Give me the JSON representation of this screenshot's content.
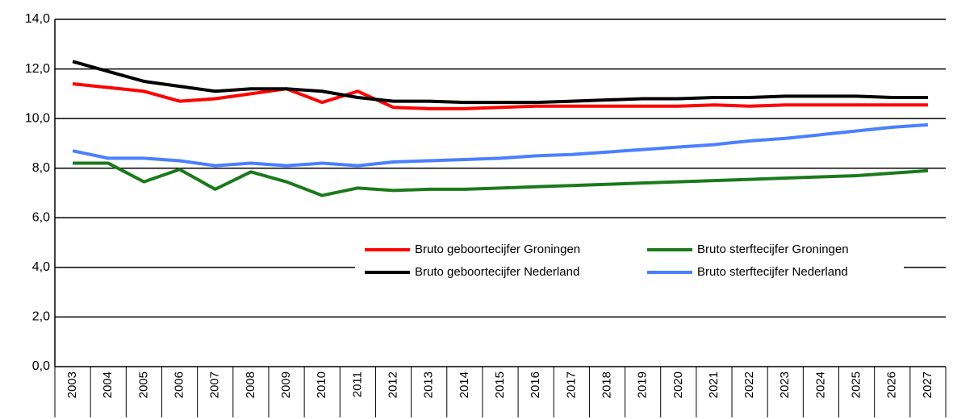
{
  "chart_data": {
    "type": "line",
    "categories": [
      "2003",
      "2004",
      "2005",
      "2006",
      "2007",
      "2008",
      "2009",
      "2010",
      "2011",
      "2012",
      "2013",
      "2014",
      "2015",
      "2016",
      "2017",
      "2018",
      "2019",
      "2020",
      "2021",
      "2022",
      "2023",
      "2024",
      "2025",
      "2026",
      "2027"
    ],
    "series": [
      {
        "name": "Bruto geboortecijfer Groningen",
        "color": "#ff0000",
        "values": [
          11.4,
          11.25,
          11.1,
          10.7,
          10.8,
          11.0,
          11.2,
          10.65,
          11.1,
          10.45,
          10.4,
          10.4,
          10.45,
          10.5,
          10.5,
          10.5,
          10.5,
          10.5,
          10.55,
          10.5,
          10.55,
          10.55,
          10.55,
          10.55,
          10.55
        ]
      },
      {
        "name": "Bruto sterftecijfer Groningen",
        "color": "#1a7a1a",
        "values": [
          8.2,
          8.2,
          7.45,
          7.95,
          7.15,
          7.85,
          7.45,
          6.9,
          7.2,
          7.1,
          7.15,
          7.15,
          7.2,
          7.25,
          7.3,
          7.35,
          7.4,
          7.45,
          7.5,
          7.55,
          7.6,
          7.65,
          7.7,
          7.8,
          7.9
        ]
      },
      {
        "name": "Bruto geboortecijfer Nederland",
        "color": "#000000",
        "values": [
          12.3,
          11.9,
          11.5,
          11.3,
          11.1,
          11.2,
          11.2,
          11.1,
          10.85,
          10.7,
          10.7,
          10.65,
          10.65,
          10.65,
          10.7,
          10.75,
          10.8,
          10.8,
          10.85,
          10.85,
          10.9,
          10.9,
          10.9,
          10.85,
          10.85
        ]
      },
      {
        "name": "Bruto sterftecijfer Nederland",
        "color": "#4a7fff",
        "values": [
          8.7,
          8.4,
          8.4,
          8.3,
          8.1,
          8.2,
          8.1,
          8.2,
          8.1,
          8.25,
          8.3,
          8.35,
          8.4,
          8.5,
          8.55,
          8.65,
          8.75,
          8.85,
          8.95,
          9.1,
          9.2,
          9.35,
          9.5,
          9.65,
          9.75
        ]
      }
    ],
    "ylim": [
      0,
      14
    ],
    "yticks": [
      {
        "value": 0,
        "label": "0,0"
      },
      {
        "value": 2,
        "label": "2,0"
      },
      {
        "value": 4,
        "label": "4,0"
      },
      {
        "value": 6,
        "label": "6,0"
      },
      {
        "value": 8,
        "label": "8,0"
      },
      {
        "value": 10,
        "label": "10,0"
      },
      {
        "value": 12,
        "label": "12,0"
      },
      {
        "value": 14,
        "label": "14,0"
      }
    ],
    "grid": true
  }
}
